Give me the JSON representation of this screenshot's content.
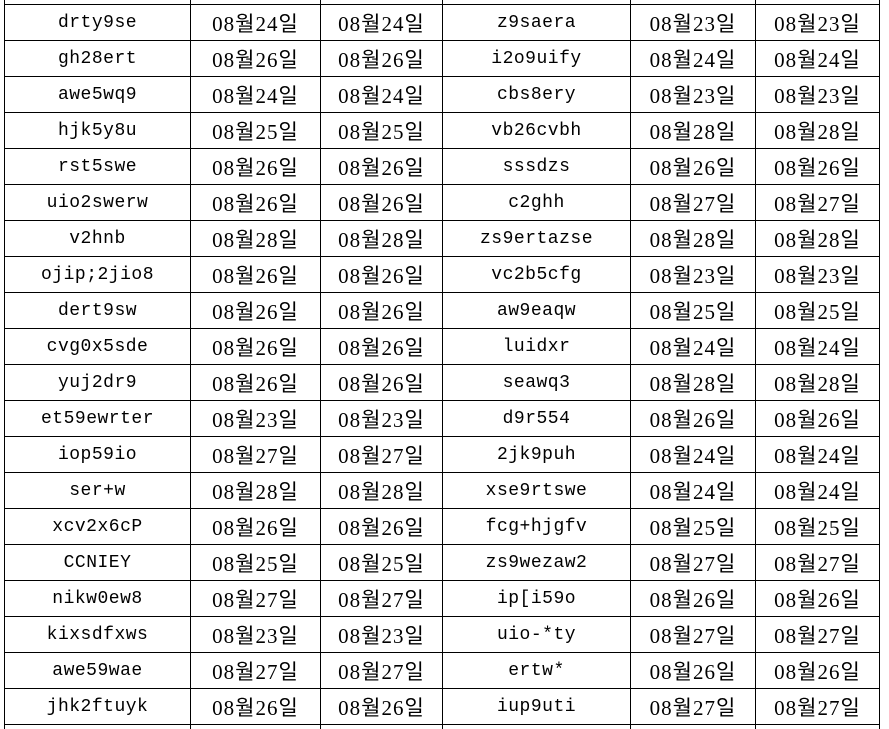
{
  "window": {
    "description": "Cropped spreadsheet table with id columns and Korean date columns",
    "background_color": "#ffffff",
    "border_color": "#000000",
    "text_color": "#000000",
    "date_format": "MM월DD일"
  },
  "table": {
    "column_kinds": [
      "id",
      "date",
      "date",
      "id",
      "date",
      "date"
    ],
    "rows": [
      [
        "drty9se",
        "08월24일",
        "08월24일",
        "z9saera",
        "08월23일",
        "08월23일"
      ],
      [
        "gh28ert",
        "08월26일",
        "08월26일",
        "i2o9uify",
        "08월24일",
        "08월24일"
      ],
      [
        "awe5wq9",
        "08월24일",
        "08월24일",
        "cbs8ery",
        "08월23일",
        "08월23일"
      ],
      [
        "hjk5y8u",
        "08월25일",
        "08월25일",
        "vb26cvbh",
        "08월28일",
        "08월28일"
      ],
      [
        "rst5swe",
        "08월26일",
        "08월26일",
        "sssdzs",
        "08월26일",
        "08월26일"
      ],
      [
        "uio2swerw",
        "08월26일",
        "08월26일",
        "c2ghh",
        "08월27일",
        "08월27일"
      ],
      [
        "v2hnb",
        "08월28일",
        "08월28일",
        "zs9ertazse",
        "08월28일",
        "08월28일"
      ],
      [
        "ojip;2jio8",
        "08월26일",
        "08월26일",
        "vc2b5cfg",
        "08월23일",
        "08월23일"
      ],
      [
        "dert9sw",
        "08월26일",
        "08월26일",
        "aw9eaqw",
        "08월25일",
        "08월25일"
      ],
      [
        "cvg0x5sde",
        "08월26일",
        "08월26일",
        "luidxr",
        "08월24일",
        "08월24일"
      ],
      [
        "yuj2dr9",
        "08월26일",
        "08월26일",
        "seawq3",
        "08월28일",
        "08월28일"
      ],
      [
        "et59ewrter",
        "08월23일",
        "08월23일",
        "d9r554",
        "08월26일",
        "08월26일"
      ],
      [
        "iop59io",
        "08월27일",
        "08월27일",
        "2jk9puh",
        "08월24일",
        "08월24일"
      ],
      [
        "ser+w",
        "08월28일",
        "08월28일",
        "xse9rtswe",
        "08월24일",
        "08월24일"
      ],
      [
        "xcv2x6cP",
        "08월26일",
        "08월26일",
        "fcg+hjgfv",
        "08월25일",
        "08월25일"
      ],
      [
        "CCNIEY",
        "08월25일",
        "08월25일",
        "zs9wezaw2",
        "08월27일",
        "08월27일"
      ],
      [
        "nikw0ew8",
        "08월27일",
        "08월27일",
        "ip[i59o",
        "08월26일",
        "08월26일"
      ],
      [
        "kixsdfxws",
        "08월23일",
        "08월23일",
        "uio-*ty",
        "08월27일",
        "08월27일"
      ],
      [
        "awe59wae",
        "08월27일",
        "08월27일",
        "ertw*",
        "08월26일",
        "08월26일"
      ],
      [
        "jhk2ftuyk",
        "08월26일",
        "08월26일",
        "iup9uti",
        "08월27일",
        "08월27일"
      ]
    ]
  }
}
